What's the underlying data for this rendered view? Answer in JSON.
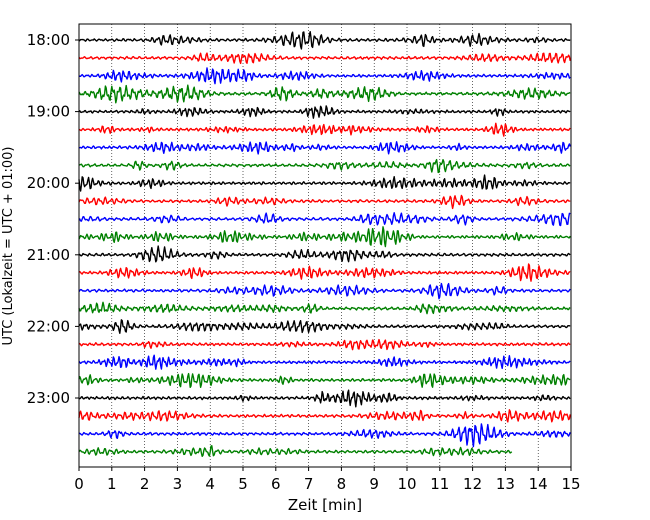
{
  "chart_data": {
    "type": "line",
    "title": "",
    "xlabel": "Zeit  [min]",
    "ylabel": "UTC (Lokalzeit = UTC + 01:00)",
    "xlim": [
      0,
      15
    ],
    "x_ticks": [
      "0",
      "1",
      "2",
      "3",
      "4",
      "5",
      "6",
      "7",
      "8",
      "9",
      "10",
      "11",
      "12",
      "13",
      "14",
      "15"
    ],
    "y_tick_labels": [
      "18:00",
      "19:00",
      "20:00",
      "21:00",
      "22:00",
      "23:00"
    ],
    "y_tick_rows": [
      0,
      4,
      8,
      12,
      16,
      20
    ],
    "grid": "vertical dotted",
    "trace_interval_min": 15,
    "series": [
      {
        "start": "18:00",
        "color": "#000000",
        "end_min": 15
      },
      {
        "start": "18:15",
        "color": "#ff0000",
        "end_min": 15
      },
      {
        "start": "18:30",
        "color": "#0000ff",
        "end_min": 15
      },
      {
        "start": "18:45",
        "color": "#008000",
        "end_min": 15
      },
      {
        "start": "19:00",
        "color": "#000000",
        "end_min": 15
      },
      {
        "start": "19:15",
        "color": "#ff0000",
        "end_min": 15
      },
      {
        "start": "19:30",
        "color": "#0000ff",
        "end_min": 15
      },
      {
        "start": "19:45",
        "color": "#008000",
        "end_min": 15
      },
      {
        "start": "20:00",
        "color": "#000000",
        "end_min": 15
      },
      {
        "start": "20:15",
        "color": "#ff0000",
        "end_min": 15
      },
      {
        "start": "20:30",
        "color": "#0000ff",
        "end_min": 15
      },
      {
        "start": "20:45",
        "color": "#008000",
        "end_min": 15
      },
      {
        "start": "21:00",
        "color": "#000000",
        "end_min": 15
      },
      {
        "start": "21:15",
        "color": "#ff0000",
        "end_min": 15
      },
      {
        "start": "21:30",
        "color": "#0000ff",
        "end_min": 15
      },
      {
        "start": "21:45",
        "color": "#008000",
        "end_min": 15
      },
      {
        "start": "22:00",
        "color": "#000000",
        "end_min": 15
      },
      {
        "start": "22:15",
        "color": "#ff0000",
        "end_min": 15
      },
      {
        "start": "22:30",
        "color": "#0000ff",
        "end_min": 15
      },
      {
        "start": "22:45",
        "color": "#008000",
        "end_min": 15
      },
      {
        "start": "23:00",
        "color": "#000000",
        "end_min": 15
      },
      {
        "start": "23:15",
        "color": "#ff0000",
        "end_min": 15
      },
      {
        "start": "23:30",
        "color": "#0000ff",
        "end_min": 15
      },
      {
        "start": "23:45",
        "color": "#008000",
        "end_min": 13.2
      }
    ]
  }
}
